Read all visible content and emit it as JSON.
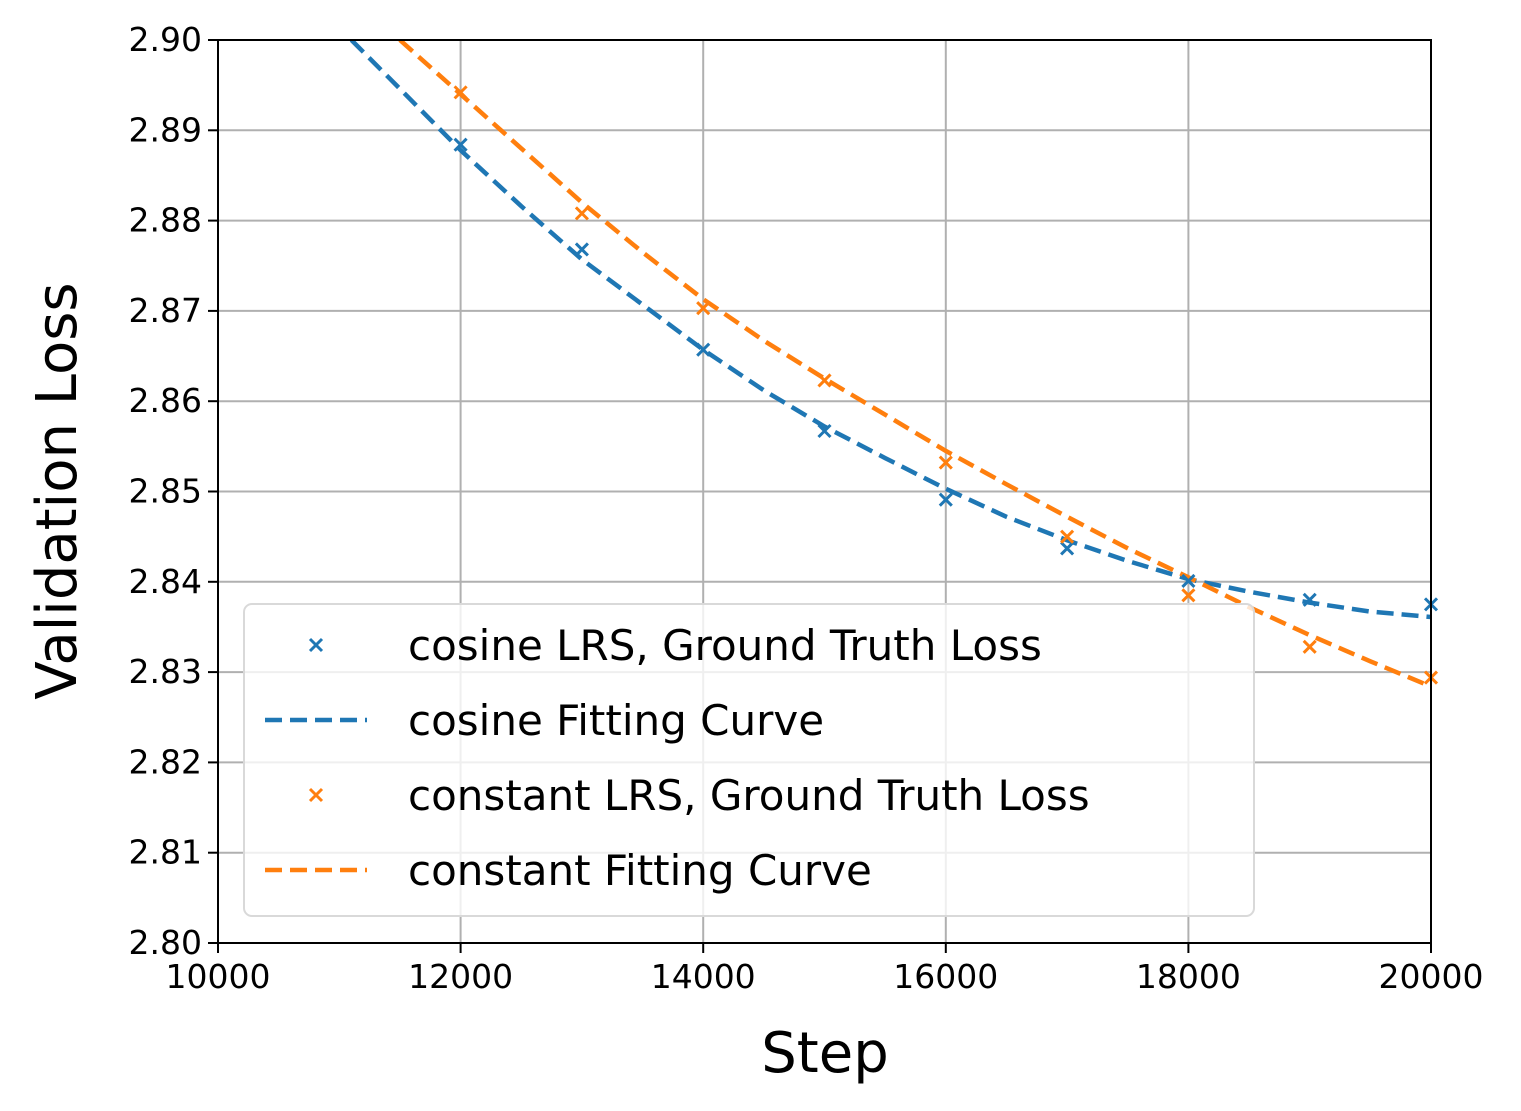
{
  "chart_data": {
    "type": "line",
    "title": "",
    "xlabel": "Step",
    "ylabel": "Validation Loss",
    "xlim": [
      10000,
      20000
    ],
    "ylim": [
      2.8,
      2.9
    ],
    "xticks": [
      10000,
      12000,
      14000,
      16000,
      18000,
      20000
    ],
    "xtick_labels": [
      "10000",
      "12000",
      "14000",
      "16000",
      "18000",
      "20000"
    ],
    "yticks": [
      2.8,
      2.81,
      2.82,
      2.83,
      2.84,
      2.85,
      2.86,
      2.87,
      2.88,
      2.89,
      2.9
    ],
    "ytick_labels": [
      "2.80",
      "2.81",
      "2.82",
      "2.83",
      "2.84",
      "2.85",
      "2.86",
      "2.87",
      "2.88",
      "2.89",
      "2.90"
    ],
    "grid": true,
    "legend_position": "lower-left",
    "series": [
      {
        "name": "cosine LRS, Ground Truth Loss",
        "kind": "markers",
        "marker": "x",
        "color": "#1f77b4",
        "x": [
          12000,
          13000,
          14000,
          15000,
          16000,
          17000,
          18000,
          19000,
          20000
        ],
        "y": [
          2.8884,
          2.8768,
          2.8657,
          2.8567,
          2.8491,
          2.8437,
          2.8401,
          2.838,
          2.8375
        ]
      },
      {
        "name": "cosine Fitting Curve",
        "kind": "dashed-line",
        "color": "#1f77b4",
        "x": [
          11100,
          11500,
          12000,
          12500,
          13000,
          13500,
          14000,
          14500,
          15000,
          15500,
          16000,
          16500,
          17000,
          17500,
          18000,
          18500,
          19000,
          19500,
          20000
        ],
        "y": [
          2.9,
          2.8946,
          2.8878,
          2.8816,
          2.8757,
          2.8707,
          2.8657,
          2.8612,
          2.8572,
          2.8537,
          2.8503,
          2.8472,
          2.8446,
          2.8423,
          2.8403,
          2.8389,
          2.8377,
          2.8367,
          2.8361
        ]
      },
      {
        "name": "constant LRS, Ground Truth Loss",
        "kind": "markers",
        "marker": "x",
        "color": "#ff7f0e",
        "x": [
          12000,
          13000,
          14000,
          15000,
          16000,
          17000,
          18000,
          19000,
          20000
        ],
        "y": [
          2.8942,
          2.8808,
          2.8703,
          2.8623,
          2.8532,
          2.845,
          2.8385,
          2.8328,
          2.8294
        ]
      },
      {
        "name": "constant Fitting Curve",
        "kind": "dashed-line",
        "color": "#ff7f0e",
        "x": [
          11500,
          12000,
          12500,
          13000,
          13500,
          14000,
          14500,
          15000,
          15500,
          16000,
          16500,
          17000,
          17500,
          18000,
          18500,
          19000,
          19500,
          20000
        ],
        "y": [
          2.9,
          2.894,
          2.888,
          2.882,
          2.8765,
          2.8713,
          2.8667,
          2.8625,
          2.8585,
          2.8545,
          2.8508,
          2.8472,
          2.8437,
          2.8405,
          2.8372,
          2.8341,
          2.8312,
          2.8284
        ]
      }
    ]
  }
}
